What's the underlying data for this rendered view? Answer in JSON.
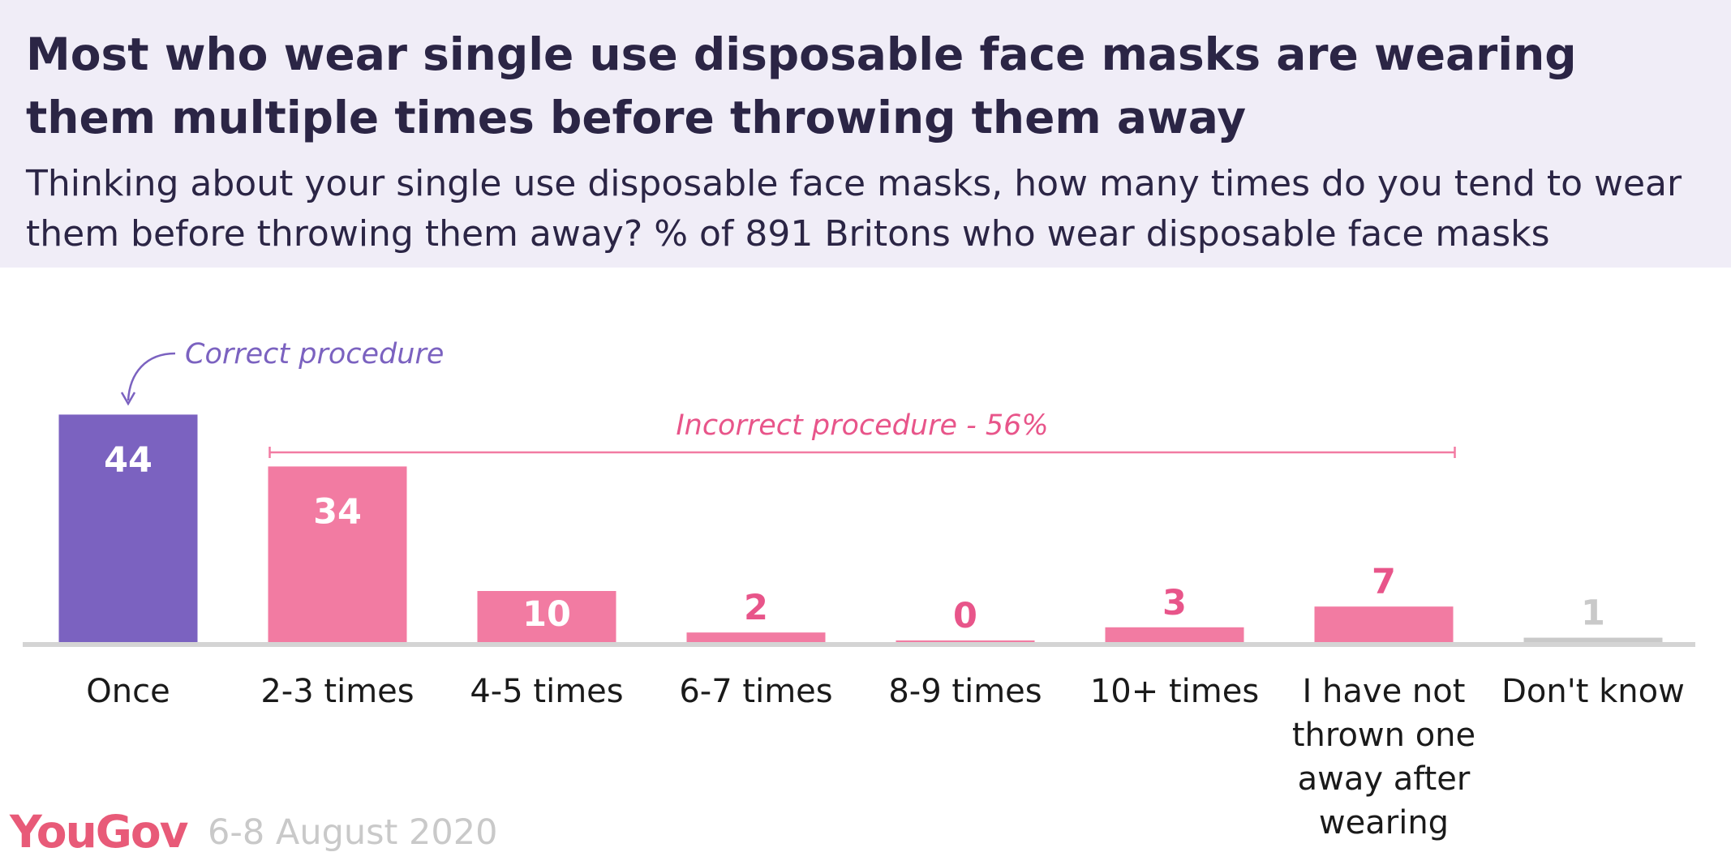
{
  "header": {
    "title": "Most who wear single use disposable face masks are wearing them multiple times before throwing them away",
    "subtitle": "Thinking about your single use disposable face masks, how many times do you tend to wear them before throwing them away? % of 891 Britons who wear disposable face masks"
  },
  "chart_data": {
    "type": "bar",
    "categories": [
      "Once",
      "2-3 times",
      "4-5 times",
      "6-7 times",
      "8-9 times",
      "10+ times",
      "I have not thrown one away after wearing",
      "Don't know"
    ],
    "category_lines": [
      [
        "Once"
      ],
      [
        "2-3 times"
      ],
      [
        "4-5 times"
      ],
      [
        "6-7 times"
      ],
      [
        "8-9 times"
      ],
      [
        "10+ times"
      ],
      [
        "I have not",
        "thrown one",
        "away after",
        "wearing"
      ],
      [
        "Don't know"
      ]
    ],
    "values": [
      44,
      34,
      10,
      2,
      0,
      3,
      7,
      1
    ],
    "data_labels": [
      "44",
      "34",
      "10",
      "2",
      "0",
      "3",
      "7",
      "1"
    ],
    "bar_colors": [
      "#7b62c0",
      "#f27ba2",
      "#f27ba2",
      "#f27ba2",
      "#f27ba2",
      "#f27ba2",
      "#f27ba2",
      "#c9c9c9"
    ],
    "ylim": [
      0,
      50
    ],
    "grid": false,
    "annotations": {
      "correct": "Correct procedure",
      "incorrect": "Incorrect procedure - 56%"
    }
  },
  "footer": {
    "logo": "YouGov",
    "date": "6-8 August 2020"
  },
  "colors": {
    "title": "#2b2545",
    "correct": "#7b62c0",
    "incorrect": "#f27ba2",
    "dont_know": "#c9c9c9",
    "label_incorrect_text": "#e8558a",
    "baseline": "#d4d4d4"
  }
}
